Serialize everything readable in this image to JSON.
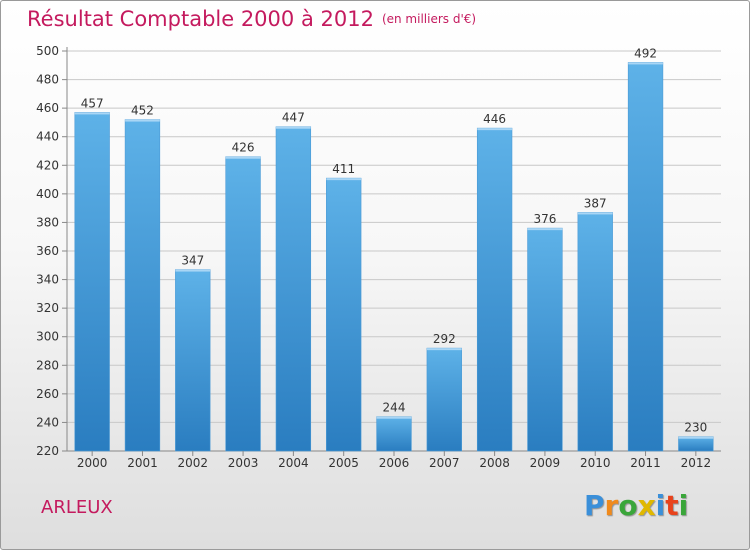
{
  "chart_data": {
    "type": "bar",
    "title": "Résultat Comptable 2000 à 2012",
    "subtitle": "(en milliers d'€)",
    "categories": [
      "2000",
      "2001",
      "2002",
      "2003",
      "2004",
      "2005",
      "2006",
      "2007",
      "2008",
      "2009",
      "2010",
      "2011",
      "2012"
    ],
    "values": [
      457,
      452,
      347,
      426,
      447,
      411,
      244,
      292,
      446,
      376,
      387,
      492,
      230
    ],
    "xlabel": "",
    "ylabel": "",
    "ylim": [
      220,
      500
    ],
    "yticks": [
      220,
      240,
      260,
      280,
      300,
      320,
      340,
      360,
      380,
      400,
      420,
      440,
      460,
      480,
      500
    ],
    "grid": true,
    "legend": "none",
    "bar_color_top": "#5eb2e8",
    "bar_color_bottom": "#2a7dc0"
  },
  "place": "ARLEUX",
  "logo": {
    "letters": [
      "P",
      "r",
      "o",
      "x",
      "i",
      "t",
      "i"
    ],
    "colors": [
      "#3a8fd9",
      "#f08a1c",
      "#3aa63a",
      "#e0b800",
      "#3a8fd9",
      "#e8431c",
      "#3aa63a"
    ]
  }
}
